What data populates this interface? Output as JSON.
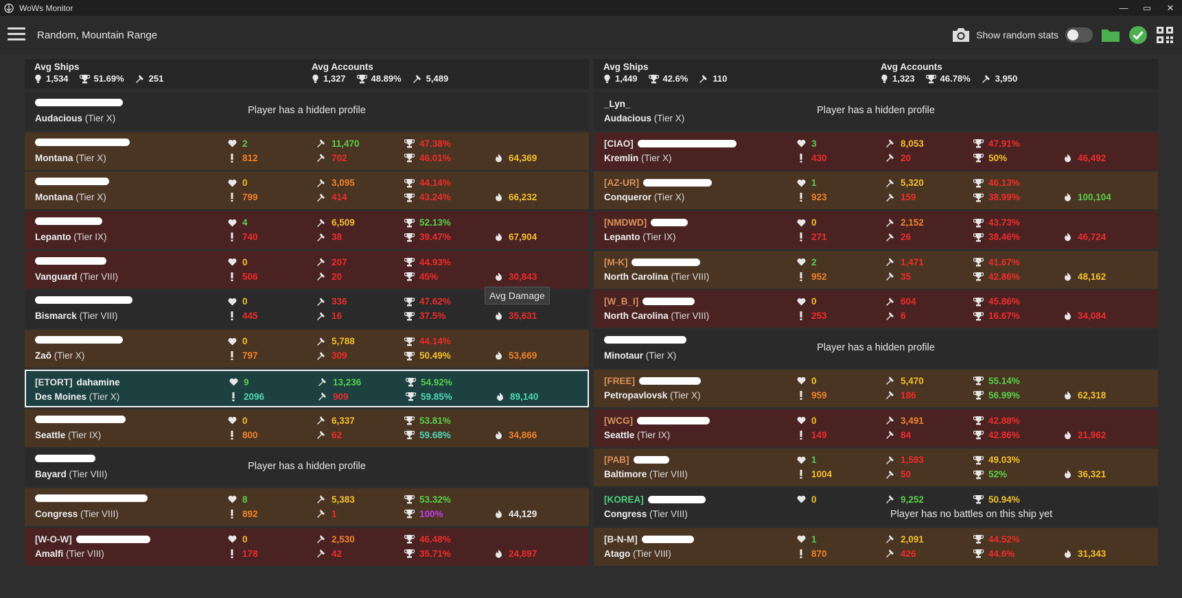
{
  "window": {
    "title": "WoWs Monitor",
    "minimize": "—",
    "maximize": "▭",
    "close": "✕"
  },
  "toolbar": {
    "title": "Random, Mountain Range",
    "show_random_stats": "Show random stats"
  },
  "colors": {
    "green": "#58d04b",
    "yellow": "#f2c12e",
    "orange": "#f0832a",
    "red": "#ee2c2c",
    "teal": "#4fd6b8",
    "purple": "#c23ee8",
    "white": "#ededed"
  },
  "tooltip": "Avg Damage",
  "teams": [
    {
      "avg_ships": {
        "label": "Avg Ships",
        "battles": "1,534",
        "winrate": "51.69%",
        "damage": "251"
      },
      "avg_accounts": {
        "label": "Avg Accounts",
        "battles": "1,327",
        "winrate": "48.89%",
        "damage": "5,489"
      },
      "players": [
        {
          "bg": "dark",
          "clan": "",
          "name": "",
          "redact_w": 128,
          "ship": "Audacious",
          "tier": "(Tier X)",
          "hidden": "Player has a hidden profile"
        },
        {
          "bg": "orange",
          "clan": "",
          "name": "",
          "redact_w": 138,
          "ship": "Montana",
          "tier": "(Tier X)",
          "a1": {
            "v": "2",
            "c": "green"
          },
          "a2": {
            "v": "812",
            "c": "orange"
          },
          "b1": {
            "v": "11,470",
            "c": "green"
          },
          "b2": {
            "v": "702",
            "c": "red"
          },
          "c1": {
            "v": "47.38%",
            "c": "red"
          },
          "c2": {
            "v": "46.01%",
            "c": "red"
          },
          "d2": {
            "v": "64,369",
            "c": "yellow"
          }
        },
        {
          "bg": "orange",
          "clan": "",
          "name": "",
          "redact_w": 108,
          "ship": "Montana",
          "tier": "(Tier X)",
          "a1": {
            "v": "0",
            "c": "yellow"
          },
          "a2": {
            "v": "799",
            "c": "orange"
          },
          "b1": {
            "v": "3,095",
            "c": "orange"
          },
          "b2": {
            "v": "414",
            "c": "red"
          },
          "c1": {
            "v": "44.14%",
            "c": "red"
          },
          "c2": {
            "v": "43.24%",
            "c": "red"
          },
          "d2": {
            "v": "66,232",
            "c": "yellow"
          }
        },
        {
          "bg": "red",
          "clan": "",
          "name": "",
          "redact_w": 98,
          "ship": "Lepanto",
          "tier": "(Tier IX)",
          "a1": {
            "v": "4",
            "c": "green"
          },
          "a2": {
            "v": "740",
            "c": "red"
          },
          "b1": {
            "v": "6,509",
            "c": "yellow"
          },
          "b2": {
            "v": "38",
            "c": "red"
          },
          "c1": {
            "v": "52.13%",
            "c": "green"
          },
          "c2": {
            "v": "39.47%",
            "c": "red"
          },
          "d2": {
            "v": "67,904",
            "c": "yellow"
          }
        },
        {
          "bg": "red",
          "clan": "",
          "name": "",
          "redact_w": 104,
          "ship": "Vanguard",
          "tier": "(Tier VIII)",
          "a1": {
            "v": "0",
            "c": "yellow"
          },
          "a2": {
            "v": "506",
            "c": "red"
          },
          "b1": {
            "v": "207",
            "c": "red"
          },
          "b2": {
            "v": "20",
            "c": "red"
          },
          "c1": {
            "v": "44.93%",
            "c": "red"
          },
          "c2": {
            "v": "45%",
            "c": "red"
          },
          "d2": {
            "v": "30,843",
            "c": "red"
          }
        },
        {
          "bg": "dark",
          "clan": "",
          "name": "",
          "redact_w": 142,
          "ship": "Bismarck",
          "tier": "(Tier VIII)",
          "a1": {
            "v": "0",
            "c": "yellow"
          },
          "a2": {
            "v": "445",
            "c": "red"
          },
          "b1": {
            "v": "336",
            "c": "red"
          },
          "b2": {
            "v": "16",
            "c": "red"
          },
          "c1": {
            "v": "47.62%",
            "c": "red"
          },
          "c2": {
            "v": "37.5%",
            "c": "red"
          },
          "d2": {
            "v": "35,631",
            "c": "red"
          }
        },
        {
          "bg": "orange",
          "clan": "",
          "name": "",
          "redact_w": 128,
          "ship": "Zaō",
          "tier": "(Tier X)",
          "a1": {
            "v": "0",
            "c": "yellow"
          },
          "a2": {
            "v": "797",
            "c": "orange"
          },
          "b1": {
            "v": "5,788",
            "c": "yellow"
          },
          "b2": {
            "v": "309",
            "c": "red"
          },
          "c1": {
            "v": "44.14%",
            "c": "red"
          },
          "c2": {
            "v": "50.49%",
            "c": "yellow"
          },
          "d2": {
            "v": "53,669",
            "c": "orange"
          }
        },
        {
          "bg": "green",
          "clan": "[ETORT]",
          "clan_c": "light",
          "name": "dahamine",
          "redact_w": 0,
          "ship": "Des Moines",
          "tier": "(Tier X)",
          "a1": {
            "v": "9",
            "c": "green"
          },
          "a2": {
            "v": "2096",
            "c": "teal"
          },
          "b1": {
            "v": "13,236",
            "c": "green"
          },
          "b2": {
            "v": "909",
            "c": "red"
          },
          "c1": {
            "v": "54.92%",
            "c": "green"
          },
          "c2": {
            "v": "59.85%",
            "c": "teal"
          },
          "d2": {
            "v": "89,140",
            "c": "teal"
          }
        },
        {
          "bg": "orange",
          "clan": "",
          "name": "",
          "redact_w": 132,
          "ship": "Seattle",
          "tier": "(Tier IX)",
          "a1": {
            "v": "0",
            "c": "yellow"
          },
          "a2": {
            "v": "800",
            "c": "orange"
          },
          "b1": {
            "v": "6,337",
            "c": "yellow"
          },
          "b2": {
            "v": "62",
            "c": "red"
          },
          "c1": {
            "v": "53.81%",
            "c": "green"
          },
          "c2": {
            "v": "59.68%",
            "c": "teal"
          },
          "d2": {
            "v": "34,866",
            "c": "orange"
          }
        },
        {
          "bg": "dark",
          "clan": "",
          "name": "",
          "redact_w": 88,
          "ship": "Bayard",
          "tier": "(Tier VIII)",
          "hidden": "Player has a hidden profile"
        },
        {
          "bg": "orange",
          "clan": "",
          "name": "",
          "redact_w": 164,
          "ship": "Congress",
          "tier": "(Tier VIII)",
          "a1": {
            "v": "8",
            "c": "green"
          },
          "a2": {
            "v": "892",
            "c": "orange"
          },
          "b1": {
            "v": "5,383",
            "c": "yellow"
          },
          "b2": {
            "v": "1",
            "c": "red"
          },
          "c1": {
            "v": "53.32%",
            "c": "green"
          },
          "c2": {
            "v": "100%",
            "c": "purple"
          },
          "d2": {
            "v": "44,129",
            "c": "white"
          }
        },
        {
          "bg": "red",
          "clan": "[W-O-W]",
          "clan_c": "light",
          "name": "",
          "redact_w": 108,
          "ship": "Amalfi",
          "tier": "(Tier VIII)",
          "a1": {
            "v": "0",
            "c": "yellow"
          },
          "a2": {
            "v": "178",
            "c": "red"
          },
          "b1": {
            "v": "2,530",
            "c": "orange"
          },
          "b2": {
            "v": "42",
            "c": "red"
          },
          "c1": {
            "v": "46.48%",
            "c": "red"
          },
          "c2": {
            "v": "35.71%",
            "c": "red"
          },
          "d2": {
            "v": "24,897",
            "c": "red"
          }
        }
      ]
    },
    {
      "avg_ships": {
        "label": "Avg Ships",
        "battles": "1,449",
        "winrate": "42.6%",
        "damage": "110"
      },
      "avg_accounts": {
        "label": "Avg Accounts",
        "battles": "1,323",
        "winrate": "46.78%",
        "damage": "3,950"
      },
      "players": [
        {
          "bg": "dark",
          "clan": "",
          "name": "_Lyn_",
          "redact_w": 0,
          "ship": "Audacious",
          "tier": "(Tier X)",
          "hidden": "Player has a hidden profile"
        },
        {
          "bg": "red",
          "clan": "[CIAO]",
          "clan_c": "light",
          "name": "",
          "redact_w": 144,
          "ship": "Kremlin",
          "tier": "(Tier X)",
          "a1": {
            "v": "3",
            "c": "green"
          },
          "a2": {
            "v": "430",
            "c": "red"
          },
          "b1": {
            "v": "8,053",
            "c": "yellow"
          },
          "b2": {
            "v": "20",
            "c": "red"
          },
          "c1": {
            "v": "47.91%",
            "c": "red"
          },
          "c2": {
            "v": "50%",
            "c": "yellow"
          },
          "d2": {
            "v": "46,492",
            "c": "red"
          }
        },
        {
          "bg": "orange",
          "clan": "[AZ-UR]",
          "clan_c": "orange",
          "name": "",
          "redact_w": 100,
          "ship": "Conqueror",
          "tier": "(Tier X)",
          "a1": {
            "v": "1",
            "c": "green"
          },
          "a2": {
            "v": "923",
            "c": "orange"
          },
          "b1": {
            "v": "5,320",
            "c": "yellow"
          },
          "b2": {
            "v": "159",
            "c": "red"
          },
          "c1": {
            "v": "46.13%",
            "c": "red"
          },
          "c2": {
            "v": "38.99%",
            "c": "red"
          },
          "d2": {
            "v": "100,104",
            "c": "green"
          }
        },
        {
          "bg": "red",
          "clan": "[NMDWD]",
          "clan_c": "orange",
          "name": "",
          "redact_w": 54,
          "ship": "Lepanto",
          "tier": "(Tier IX)",
          "a1": {
            "v": "0",
            "c": "yellow"
          },
          "a2": {
            "v": "271",
            "c": "red"
          },
          "b1": {
            "v": "2,152",
            "c": "orange"
          },
          "b2": {
            "v": "26",
            "c": "red"
          },
          "c1": {
            "v": "43.73%",
            "c": "red"
          },
          "c2": {
            "v": "38.46%",
            "c": "red"
          },
          "d2": {
            "v": "46,724",
            "c": "red"
          }
        },
        {
          "bg": "orange",
          "clan": "[M-K]",
          "clan_c": "orange",
          "name": "",
          "redact_w": 100,
          "ship": "North Carolina",
          "tier": "(Tier VIII)",
          "a1": {
            "v": "2",
            "c": "green"
          },
          "a2": {
            "v": "952",
            "c": "orange"
          },
          "b1": {
            "v": "1,471",
            "c": "red"
          },
          "b2": {
            "v": "35",
            "c": "red"
          },
          "c1": {
            "v": "41.67%",
            "c": "red"
          },
          "c2": {
            "v": "42.86%",
            "c": "red"
          },
          "d2": {
            "v": "48,162",
            "c": "yellow"
          }
        },
        {
          "bg": "red",
          "clan": "[W_B_I]",
          "clan_c": "orange",
          "name": "",
          "redact_w": 76,
          "ship": "North Carolina",
          "tier": "(Tier VIII)",
          "a1": {
            "v": "0",
            "c": "yellow"
          },
          "a2": {
            "v": "253",
            "c": "red"
          },
          "b1": {
            "v": "604",
            "c": "red"
          },
          "b2": {
            "v": "6",
            "c": "red"
          },
          "c1": {
            "v": "45.86%",
            "c": "red"
          },
          "c2": {
            "v": "16.67%",
            "c": "red"
          },
          "d2": {
            "v": "34,084",
            "c": "red"
          }
        },
        {
          "bg": "dark",
          "clan": "",
          "name": "",
          "redact_w": 120,
          "ship": "Minotaur",
          "tier": "(Tier X)",
          "hidden": "Player has a hidden profile"
        },
        {
          "bg": "orange",
          "clan": "[FREE]",
          "clan_c": "orange",
          "name": "",
          "redact_w": 90,
          "ship": "Petropavlovsk",
          "tier": "(Tier X)",
          "a1": {
            "v": "0",
            "c": "yellow"
          },
          "a2": {
            "v": "959",
            "c": "orange"
          },
          "b1": {
            "v": "5,470",
            "c": "yellow"
          },
          "b2": {
            "v": "186",
            "c": "red"
          },
          "c1": {
            "v": "55.14%",
            "c": "green"
          },
          "c2": {
            "v": "56.99%",
            "c": "green"
          },
          "d2": {
            "v": "62,318",
            "c": "yellow"
          }
        },
        {
          "bg": "red",
          "clan": "[WCG]",
          "clan_c": "orange",
          "name": "",
          "redact_w": 106,
          "ship": "Seattle",
          "tier": "(Tier IX)",
          "a1": {
            "v": "0",
            "c": "yellow"
          },
          "a2": {
            "v": "149",
            "c": "red"
          },
          "b1": {
            "v": "3,491",
            "c": "orange"
          },
          "b2": {
            "v": "84",
            "c": "red"
          },
          "c1": {
            "v": "42.88%",
            "c": "red"
          },
          "c2": {
            "v": "42.86%",
            "c": "red"
          },
          "d2": {
            "v": "21,962",
            "c": "red"
          }
        },
        {
          "bg": "orange",
          "clan": "[PAB]",
          "clan_c": "orange",
          "name": "",
          "redact_w": 52,
          "ship": "Baltimore",
          "tier": "(Tier VIII)",
          "a1": {
            "v": "1",
            "c": "green"
          },
          "a2": {
            "v": "1004",
            "c": "yellow"
          },
          "b1": {
            "v": "1,593",
            "c": "red"
          },
          "b2": {
            "v": "50",
            "c": "red"
          },
          "c1": {
            "v": "49.03%",
            "c": "yellow"
          },
          "c2": {
            "v": "52%",
            "c": "green"
          },
          "d2": {
            "v": "36,321",
            "c": "yellow"
          }
        },
        {
          "bg": "dark",
          "clan": "[KOREA]",
          "clan_c": "green",
          "name": "",
          "redact_w": 84,
          "ship": "Congress",
          "tier": "(Tier VIII)",
          "a1": {
            "v": "0",
            "c": "yellow"
          },
          "b1": {
            "v": "9,252",
            "c": "green"
          },
          "c1": {
            "v": "50.94%",
            "c": "yellow"
          },
          "nobattles": "Player has no battles on this ship yet"
        },
        {
          "bg": "orange",
          "clan": "[B-N-M]",
          "clan_c": "light",
          "name": "",
          "redact_w": 76,
          "ship": "Atago",
          "tier": "(Tier VIII)",
          "a1": {
            "v": "1",
            "c": "green"
          },
          "a2": {
            "v": "870",
            "c": "orange"
          },
          "b1": {
            "v": "2,091",
            "c": "yellow"
          },
          "b2": {
            "v": "426",
            "c": "red"
          },
          "c1": {
            "v": "44.52%",
            "c": "red"
          },
          "c2": {
            "v": "44.6%",
            "c": "red"
          },
          "d2": {
            "v": "31,343",
            "c": "yellow"
          }
        }
      ]
    }
  ]
}
